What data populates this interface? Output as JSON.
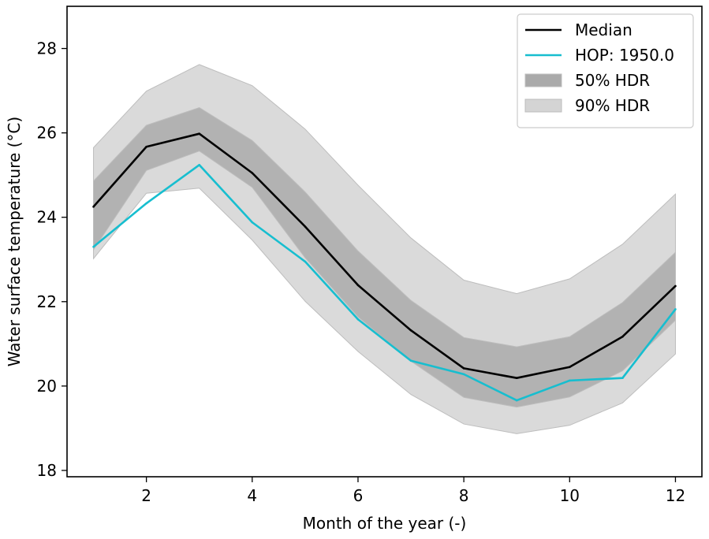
{
  "chart_data": {
    "type": "line",
    "title": "",
    "xlabel": "Month of the year (-)",
    "ylabel": "Water surface temperature (°C)",
    "xlim": [
      0.5,
      12.5
    ],
    "ylim": [
      17.85,
      29.0
    ],
    "xticks": [
      2,
      4,
      6,
      8,
      10,
      12
    ],
    "yticks": [
      18,
      20,
      22,
      24,
      26,
      28
    ],
    "x": [
      1,
      2,
      3,
      4,
      5,
      6,
      7,
      8,
      9,
      10,
      11,
      12
    ],
    "series": [
      {
        "name": "Median",
        "kind": "line",
        "color": "#000000",
        "values": [
          24.25,
          25.67,
          25.98,
          25.05,
          23.78,
          22.39,
          21.32,
          20.42,
          20.19,
          20.45,
          21.17,
          22.37
        ]
      },
      {
        "name": "HOP: 1950.0",
        "kind": "line",
        "color": "#17becf",
        "values": [
          23.3,
          24.33,
          25.24,
          23.88,
          22.95,
          21.58,
          20.6,
          20.28,
          19.66,
          20.13,
          20.19,
          21.82
        ]
      }
    ],
    "bands": [
      {
        "name": "90% HDR",
        "color": "#d4d4d4",
        "lower": [
          23.02,
          24.57,
          24.69,
          23.46,
          22.01,
          20.82,
          19.8,
          19.1,
          18.87,
          19.07,
          19.6,
          20.76
        ],
        "upper": [
          25.65,
          26.99,
          27.62,
          27.12,
          26.09,
          24.76,
          23.51,
          22.51,
          22.19,
          22.54,
          23.36,
          24.55
        ]
      },
      {
        "name": "50% HDR",
        "color": "#aaaaaa",
        "lower": [
          23.23,
          25.11,
          25.57,
          24.71,
          23.04,
          21.64,
          20.59,
          19.73,
          19.5,
          19.74,
          20.36,
          21.56
        ],
        "upper": [
          24.86,
          26.18,
          26.6,
          25.82,
          24.6,
          23.2,
          22.03,
          21.15,
          20.93,
          21.17,
          21.98,
          23.17
        ]
      }
    ],
    "legend": {
      "placement": "top-right",
      "entries": [
        {
          "label": "Median",
          "kind": "line",
          "color": "#000000"
        },
        {
          "label": "HOP: 1950.0",
          "kind": "line",
          "color": "#17becf"
        },
        {
          "label": "50% HDR",
          "kind": "patch",
          "color": "#aaaaaa"
        },
        {
          "label": "90% HDR",
          "kind": "patch",
          "color": "#d4d4d4"
        }
      ]
    },
    "grid": false
  }
}
